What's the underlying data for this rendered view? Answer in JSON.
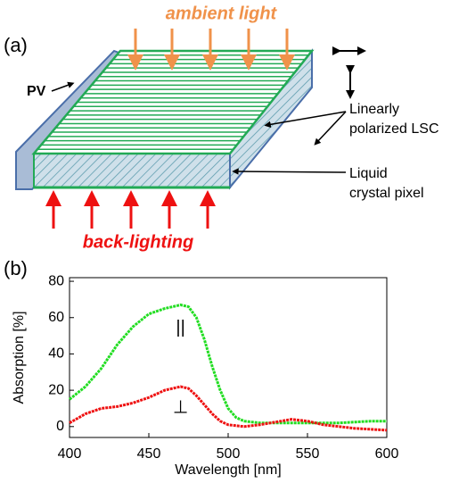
{
  "figure": {
    "panel_a_label": "(a)",
    "panel_b_label": "(b)"
  },
  "diagram": {
    "ambient_label": "ambient light",
    "pv_label": "PV",
    "lsc_label": [
      "Linearly",
      "polarized LSC"
    ],
    "pixel_label": [
      "Liquid",
      "crystal pixel"
    ],
    "backlight_label": "back-lighting"
  },
  "chart_data": {
    "type": "line",
    "x_label": "Wavelength [nm]",
    "y_label": "Absorption [%]",
    "x": [
      400,
      410,
      420,
      430,
      440,
      450,
      460,
      470,
      475,
      480,
      485,
      490,
      495,
      500,
      505,
      510,
      520,
      530,
      540,
      550,
      560,
      570,
      580,
      590,
      600
    ],
    "series": [
      {
        "color": "#22dd22",
        "values": [
          15,
          22,
          32,
          45,
          55,
          62,
          65,
          67,
          66,
          60,
          48,
          33,
          20,
          10,
          5,
          3,
          2,
          2,
          2,
          2,
          2,
          2,
          2.5,
          3,
          3
        ]
      },
      {
        "color": "#ee1111",
        "values": [
          2,
          7,
          10,
          11,
          13,
          16,
          20,
          22,
          21,
          17,
          12,
          7,
          3,
          1,
          0.5,
          0,
          1,
          2.5,
          4,
          3,
          1,
          0,
          -1,
          -1.5,
          -2
        ]
      }
    ],
    "annotations": [
      {
        "text": "||",
        "x": 470,
        "y": 54
      },
      {
        "text": "⊥",
        "x": 470,
        "y": 10
      }
    ],
    "xlim": [
      400,
      600
    ],
    "xticks": [
      400,
      450,
      500,
      550,
      600
    ],
    "ylim": [
      -6,
      82
    ],
    "yticks": [
      0,
      20,
      40,
      60,
      80
    ]
  }
}
